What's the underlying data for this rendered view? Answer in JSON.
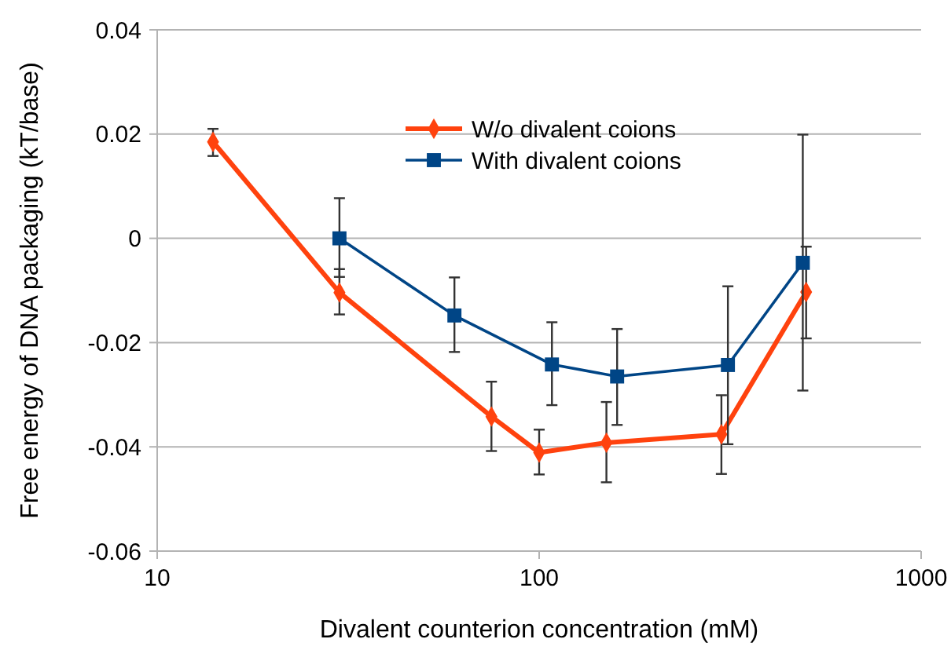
{
  "chart_data": {
    "type": "line",
    "xlabel": "Divalent counterion concentration (mM)",
    "ylabel": "Free energy of DNA packaging (kT/base)",
    "log": "x",
    "xlim": [
      10,
      1000
    ],
    "xticks": [
      10,
      100,
      1000
    ],
    "ylim": [
      -0.06,
      0.04
    ],
    "yticks": [
      -0.06,
      -0.04,
      -0.02,
      0,
      0.02,
      0.04
    ],
    "grid": "y",
    "legend": "top",
    "series": [
      {
        "name": "W/o divalent coions",
        "color": "#ff420e",
        "marker": "diamond",
        "x": [
          14,
          30,
          75,
          100,
          150,
          300,
          500
        ],
        "values": [
          0.0185,
          -0.0104,
          -0.0342,
          -0.0411,
          -0.0392,
          -0.0376,
          -0.0103
        ],
        "errors": [
          [
            0.0158,
            0.021
          ],
          [
            -0.0146,
            -0.0059
          ],
          [
            -0.0408,
            -0.0275
          ],
          [
            -0.0453,
            -0.0367
          ],
          [
            -0.0468,
            -0.0314
          ],
          [
            -0.0452,
            -0.0301
          ],
          [
            -0.0192,
            -0.0016
          ]
        ]
      },
      {
        "name": "With divalent coions",
        "color": "#004586",
        "marker": "square",
        "x": [
          30,
          60,
          108,
          160,
          312,
          490
        ],
        "values": [
          0,
          -0.0148,
          -0.0242,
          -0.0265,
          -0.0243,
          -0.0047
        ],
        "errors": [
          [
            -0.0074,
            0.0077
          ],
          [
            -0.0218,
            -0.0075
          ],
          [
            -0.032,
            -0.0161
          ],
          [
            -0.0358,
            -0.0174
          ],
          [
            -0.0395,
            -0.0092
          ],
          [
            -0.0292,
            0.0199
          ]
        ]
      }
    ]
  }
}
